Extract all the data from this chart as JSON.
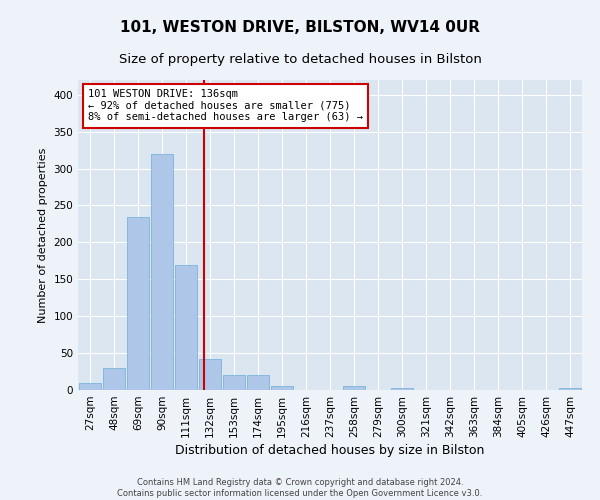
{
  "title": "101, WESTON DRIVE, BILSTON, WV14 0UR",
  "subtitle": "Size of property relative to detached houses in Bilston",
  "xlabel": "Distribution of detached houses by size in Bilston",
  "ylabel": "Number of detached properties",
  "footer_line1": "Contains HM Land Registry data © Crown copyright and database right 2024.",
  "footer_line2": "Contains public sector information licensed under the Open Government Licence v3.0.",
  "categories": [
    "27sqm",
    "48sqm",
    "69sqm",
    "90sqm",
    "111sqm",
    "132sqm",
    "153sqm",
    "174sqm",
    "195sqm",
    "216sqm",
    "237sqm",
    "258sqm",
    "279sqm",
    "300sqm",
    "321sqm",
    "342sqm",
    "363sqm",
    "384sqm",
    "405sqm",
    "426sqm",
    "447sqm"
  ],
  "values": [
    10,
    30,
    235,
    320,
    170,
    42,
    20,
    20,
    5,
    0,
    0,
    5,
    0,
    3,
    0,
    0,
    0,
    0,
    0,
    0,
    3
  ],
  "bar_color": "#aec7e8",
  "bar_edge_color": "#6baed6",
  "background_color": "#dce6f1",
  "grid_color": "#ffffff",
  "annotation_line1": "101 WESTON DRIVE: 136sqm",
  "annotation_line2": "← 92% of detached houses are smaller (775)",
  "annotation_line3": "8% of semi-detached houses are larger (63) →",
  "vline_x_index": 4.75,
  "vline_color": "#cc0000",
  "ylim": [
    0,
    420
  ],
  "yticks": [
    0,
    50,
    100,
    150,
    200,
    250,
    300,
    350,
    400
  ],
  "title_fontsize": 11,
  "subtitle_fontsize": 9.5,
  "xlabel_fontsize": 9,
  "ylabel_fontsize": 8,
  "tick_fontsize": 7.5,
  "annotation_fontsize": 7.5,
  "footer_fontsize": 6
}
